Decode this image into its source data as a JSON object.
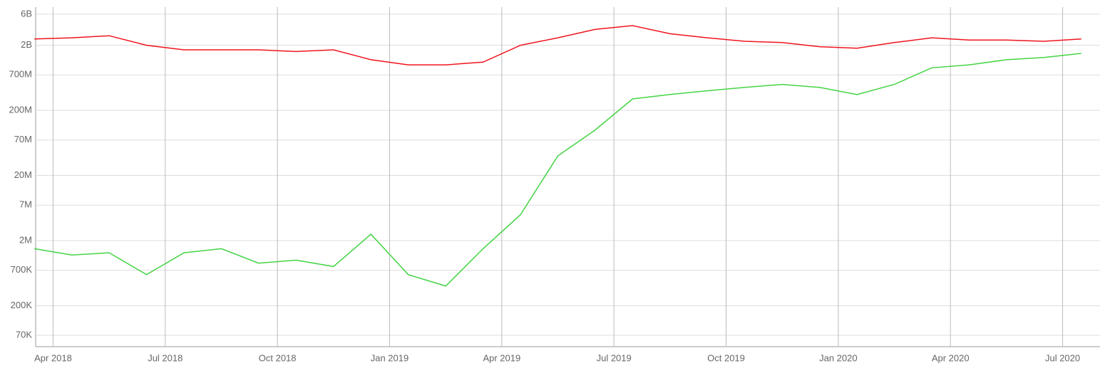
{
  "chart_data": {
    "type": "line",
    "x": [
      "2018-03",
      "2018-04",
      "2018-05",
      "2018-06",
      "2018-07",
      "2018-08",
      "2018-09",
      "2018-10",
      "2018-11",
      "2018-12",
      "2019-01",
      "2019-02",
      "2019-03",
      "2019-04",
      "2019-05",
      "2019-06",
      "2019-07",
      "2019-08",
      "2019-09",
      "2019-10",
      "2019-11",
      "2019-12",
      "2020-01",
      "2020-02",
      "2020-03",
      "2020-04",
      "2020-05",
      "2020-06",
      "2020-07"
    ],
    "series": [
      {
        "color": "#f0141e",
        "values": [
          2500000000,
          2600000000,
          2800000000,
          2000000000,
          1700000000,
          1700000000,
          1700000000,
          1600000000,
          1700000000,
          1200000000,
          1000000000,
          1000000000,
          1100000000,
          2000000000,
          2600000000,
          3500000000,
          4000000000,
          3000000000,
          2600000000,
          2300000000,
          2200000000,
          1900000000,
          1800000000,
          2200000000,
          2600000000,
          2400000000,
          2400000000,
          2300000000,
          2500000000
        ]
      },
      {
        "color": "#44d444",
        "values": [
          1500000,
          1200000,
          1300000,
          600000,
          1300000,
          1500000,
          900000,
          1000000,
          800000,
          2500000,
          600000,
          400000,
          1500000,
          5000000,
          40000000,
          100000000,
          300000000,
          350000000,
          400000000,
          450000000,
          500000000,
          450000000,
          350000000,
          500000000,
          900000000,
          1000000000,
          1200000000,
          1300000000,
          1500000000
        ]
      }
    ],
    "xlim": [
      "2018-03",
      "2020-07"
    ],
    "xticks": [
      {
        "value": "2018-04",
        "label": "Apr 2018"
      },
      {
        "value": "2018-07",
        "label": "Jul 2018"
      },
      {
        "value": "2018-10",
        "label": "Oct 2018"
      },
      {
        "value": "2019-01",
        "label": "Jan 2019"
      },
      {
        "value": "2019-04",
        "label": "Apr 2019"
      },
      {
        "value": "2019-07",
        "label": "Jul 2019"
      },
      {
        "value": "2019-10",
        "label": "Oct 2019"
      },
      {
        "value": "2020-01",
        "label": "Jan 2020"
      },
      {
        "value": "2020-04",
        "label": "Apr 2020"
      },
      {
        "value": "2020-07",
        "label": "Jul 2020"
      }
    ],
    "ylim": [
      47000,
      7700000000
    ],
    "yticks": [
      {
        "value": 70000,
        "label": "70K"
      },
      {
        "value": 200000,
        "label": "200K"
      },
      {
        "value": 700000,
        "label": "700K"
      },
      {
        "value": 2000000,
        "label": "2M"
      },
      {
        "value": 7000000,
        "label": "7M"
      },
      {
        "value": 20000000,
        "label": "20M"
      },
      {
        "value": 70000000,
        "label": "70M"
      },
      {
        "value": 200000000,
        "label": "200M"
      },
      {
        "value": 700000000,
        "label": "700M"
      },
      {
        "value": 2000000000,
        "label": "2B"
      },
      {
        "value": 6000000000,
        "label": "6B"
      }
    ],
    "log_scale": true,
    "grid": true
  }
}
